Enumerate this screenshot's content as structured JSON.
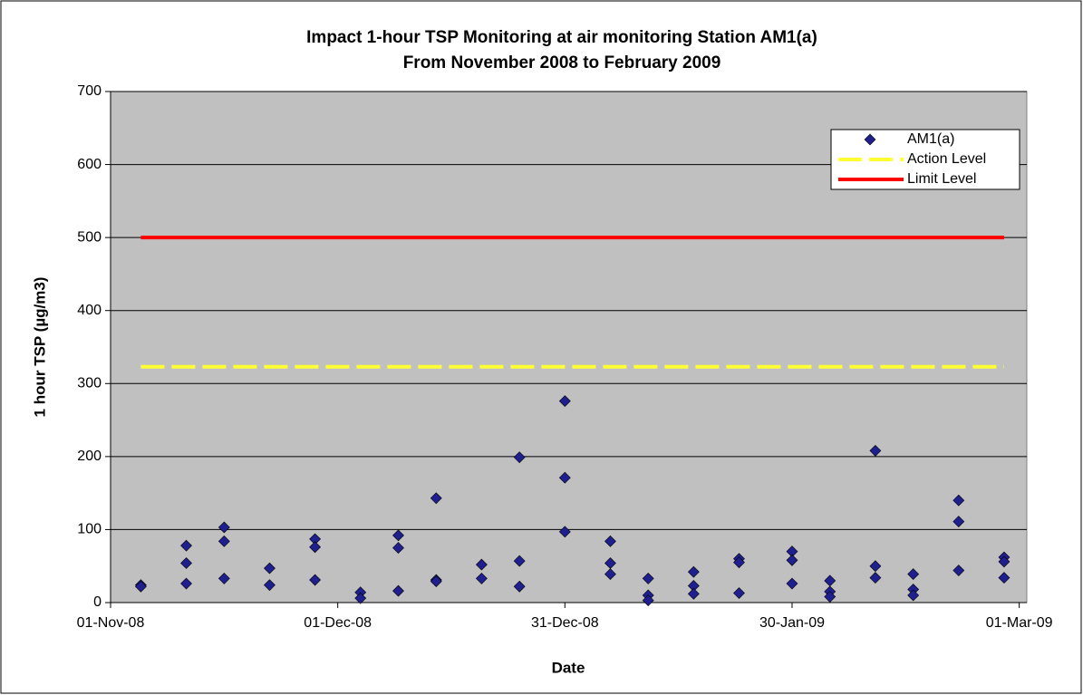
{
  "chart_data": {
    "type": "scatter",
    "title": "Impact 1-hour TSP Monitoring at air monitoring Station AM1(a)",
    "subtitle": "From November 2008 to February 2009",
    "x_label": "Date",
    "y_label": "1 hour TSP (µg/m3)",
    "xlim": [
      "2008-11-01",
      "2009-03-02"
    ],
    "xticks": [
      {
        "value": "2008-11-01",
        "label": "01-Nov-08"
      },
      {
        "value": "2008-12-01",
        "label": "01-Dec-08"
      },
      {
        "value": "2008-12-31",
        "label": "31-Dec-08"
      },
      {
        "value": "2009-01-30",
        "label": "30-Jan-09"
      },
      {
        "value": "2009-03-01",
        "label": "01-Mar-09"
      }
    ],
    "ylim": [
      0,
      700
    ],
    "yticks": [
      0,
      100,
      200,
      300,
      400,
      500,
      600,
      700
    ],
    "grid": true,
    "legend": "top-right",
    "series": [
      {
        "name": "AM1(a)",
        "type": "scatter",
        "color": "#1f1f8f",
        "x": [
          "2008-11-05",
          "2008-11-05",
          "2008-11-11",
          "2008-11-11",
          "2008-11-11",
          "2008-11-16",
          "2008-11-16",
          "2008-11-16",
          "2008-11-22",
          "2008-11-22",
          "2008-11-28",
          "2008-11-28",
          "2008-11-28",
          "2008-12-04",
          "2008-12-04",
          "2008-12-09",
          "2008-12-09",
          "2008-12-09",
          "2008-12-14",
          "2008-12-14",
          "2008-12-14",
          "2008-12-20",
          "2008-12-20",
          "2008-12-25",
          "2008-12-25",
          "2008-12-25",
          "2008-12-31",
          "2008-12-31",
          "2008-12-31",
          "2009-01-06",
          "2009-01-06",
          "2009-01-06",
          "2009-01-11",
          "2009-01-11",
          "2009-01-11",
          "2009-01-17",
          "2009-01-17",
          "2009-01-17",
          "2009-01-23",
          "2009-01-23",
          "2009-01-23",
          "2009-01-30",
          "2009-01-30",
          "2009-01-30",
          "2009-02-04",
          "2009-02-04",
          "2009-02-04",
          "2009-02-10",
          "2009-02-10",
          "2009-02-10",
          "2009-02-15",
          "2009-02-15",
          "2009-02-15",
          "2009-02-21",
          "2009-02-21",
          "2009-02-21",
          "2009-02-27",
          "2009-02-27",
          "2009-02-27"
        ],
        "values": [
          24,
          22,
          78,
          54,
          26,
          103,
          84,
          33,
          47,
          24,
          87,
          76,
          31,
          14,
          6,
          92,
          75,
          16,
          143,
          31,
          29,
          52,
          33,
          199,
          57,
          22,
          276,
          171,
          97,
          84,
          54,
          39,
          33,
          10,
          3,
          42,
          23,
          12,
          60,
          55,
          13,
          70,
          58,
          26,
          30,
          15,
          8,
          208,
          50,
          34,
          39,
          18,
          10,
          140,
          111,
          44,
          62,
          56,
          34
        ]
      },
      {
        "name": "Action Level",
        "type": "line",
        "color": "#ffff33",
        "dash": true,
        "x": [
          "2008-11-05",
          "2009-02-27"
        ],
        "values": [
          323,
          323
        ]
      },
      {
        "name": "Limit Level",
        "type": "line",
        "color": "#ff0000",
        "x": [
          "2008-11-05",
          "2009-02-27"
        ],
        "values": [
          500,
          500
        ]
      }
    ]
  }
}
